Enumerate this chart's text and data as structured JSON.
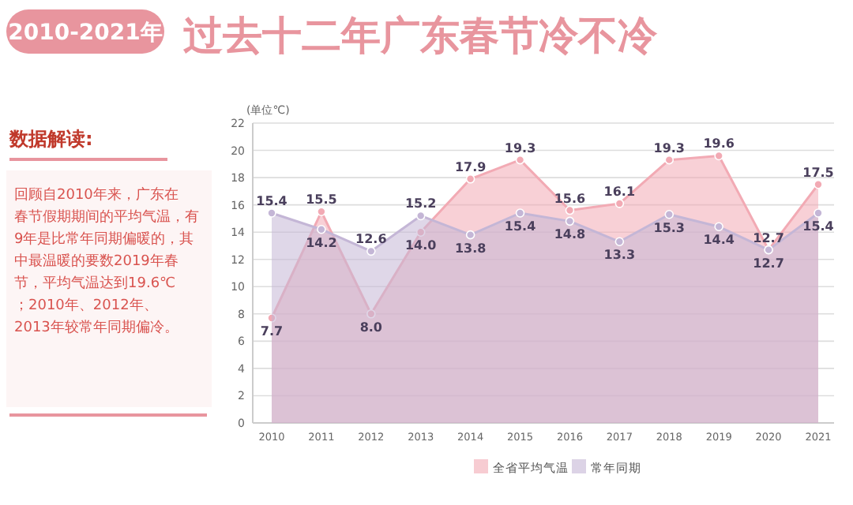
{
  "chart_data": {
    "type": "area",
    "title": "过去十二年广东春节冷不冷",
    "subtitle": "2010-2021年",
    "ylabel": "(单位℃)",
    "annotations": [
      "数据解读:",
      "回顾自2010年来，广东在春节假期期间的平均气温，有9年是比常年同期偏暖的，其中最温暖的要数2019年春节，平均气温达到19.6℃；2010年、2012年、2013年较常年同期偏冷。"
    ],
    "categories": [
      "2010",
      "2011",
      "2012",
      "2013",
      "2014",
      "2015",
      "2016",
      "2017",
      "2018",
      "2019",
      "2020",
      "2021"
    ],
    "series": [
      {
        "name": "全省平均气温",
        "color": "#f2aab4",
        "values": [
          7.7,
          15.5,
          8.0,
          14.0,
          17.9,
          19.3,
          15.6,
          16.1,
          19.3,
          19.6,
          12.7,
          17.5
        ],
        "value_labels": [
          "7.7",
          "15.5",
          "8.0",
          "14.0",
          "17.9",
          "19.3",
          "15.6",
          "16.1",
          "19.3",
          "19.6",
          "12.7",
          "17.5"
        ]
      },
      {
        "name": "常年同期",
        "color": "#c4b6d6",
        "values": [
          15.4,
          14.2,
          12.6,
          15.2,
          13.8,
          15.4,
          14.8,
          13.3,
          15.3,
          14.4,
          12.7,
          15.4
        ],
        "value_labels": [
          "15.4",
          "14.2",
          "12.6",
          "15.2",
          "13.8",
          "15.4",
          "14.8",
          "13.3",
          "15.3",
          "14.4",
          "12.7",
          "15.4"
        ]
      }
    ],
    "ylim": [
      0,
      22
    ],
    "yticks": [
      0,
      2,
      4,
      6,
      8,
      10,
      12,
      14,
      16,
      18,
      20,
      22
    ],
    "grid": "y",
    "legend": "bottom",
    "marker": "circle",
    "line_style": "solid"
  }
}
